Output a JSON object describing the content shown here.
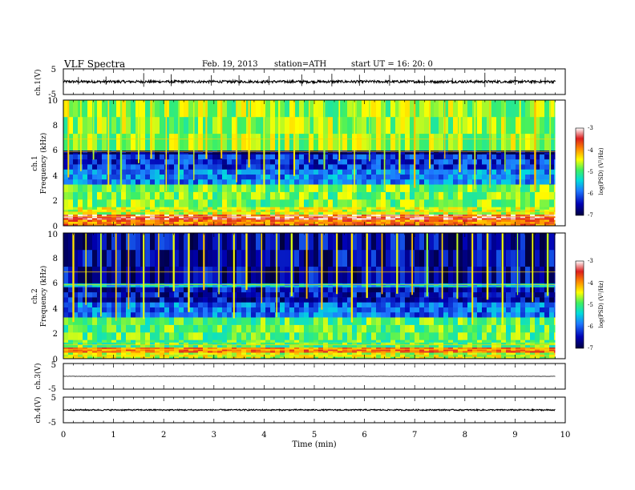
{
  "header": {
    "title": "VLF  Spectra",
    "date": "Feb. 19, 2013",
    "station": "station=ATH",
    "start": "start  UT  =   16: 20: 0"
  },
  "colors": {
    "colormap": [
      "#000040",
      "#0000b4",
      "#1e78ff",
      "#00dcdc",
      "#40f060",
      "#ffff00",
      "#ff8c00",
      "#dc1e1e",
      "#ffffff"
    ],
    "trace": "#000000"
  },
  "chart_data": [
    {
      "type": "line",
      "panel": "ch1-waveform",
      "ylabel": "ch.1(V)",
      "ylim": [
        -5,
        5
      ],
      "y_ticks": [
        "5",
        "-5"
      ],
      "xlim": [
        0,
        10
      ],
      "trace_level": 0,
      "noise_amplitude": 0.5,
      "spike_times_min": [
        0.3,
        0.85,
        1.6,
        2.15,
        2.95,
        3.5,
        4.1,
        4.75,
        5.35,
        5.9,
        6.5,
        7.2,
        7.75,
        8.4,
        9.0,
        9.6
      ]
    },
    {
      "type": "heatmap",
      "panel": "ch1-spectrogram",
      "ylabel": "ch.1\nFrequency  (kHz)",
      "y_ticks": [
        "0",
        "2",
        "4",
        "6",
        "8",
        "10"
      ],
      "ylim": [
        0,
        10
      ],
      "xlim": [
        0,
        9.8
      ],
      "colorbar": {
        "label": "log(PSD) (V²/Hz)",
        "ticks": [
          "-3",
          "-4",
          "-5",
          "-6",
          "-7"
        ],
        "range": [
          -7,
          -3
        ]
      },
      "bands_khz": [
        {
          "f0": 0.0,
          "f1": 0.5,
          "level": -3.9
        },
        {
          "f0": 0.5,
          "f1": 0.9,
          "level": -3.4
        },
        {
          "f0": 0.9,
          "f1": 1.5,
          "level": -4.6
        },
        {
          "f0": 1.5,
          "f1": 3.3,
          "level": -4.9
        },
        {
          "f0": 3.3,
          "f1": 4.5,
          "level": -5.9
        },
        {
          "f0": 4.5,
          "f1": 5.7,
          "level": -6.3
        },
        {
          "f0": 5.7,
          "f1": 6.0,
          "level": -6.8
        },
        {
          "f0": 6.0,
          "f1": 10.0,
          "level": -4.8
        }
      ],
      "sferic_times_min": [
        0.1,
        0.35,
        0.6,
        0.9,
        1.15,
        1.5,
        1.75,
        2.05,
        2.3,
        2.6,
        2.85,
        3.15,
        3.45,
        3.7,
        4.0,
        4.3,
        4.6,
        4.9,
        5.2,
        5.5,
        5.8,
        6.1,
        6.4,
        6.7,
        7.0,
        7.3,
        7.6,
        7.9,
        8.2,
        8.5,
        8.8,
        9.1,
        9.4,
        9.7
      ]
    },
    {
      "type": "heatmap",
      "panel": "ch2-spectrogram",
      "ylabel": "ch.2\nFrequency  (kHz)",
      "y_ticks": [
        "0",
        "2",
        "4",
        "6",
        "8",
        "10"
      ],
      "ylim": [
        0,
        10
      ],
      "xlim": [
        0,
        9.8
      ],
      "colorbar": {
        "label": "log(PSD) (V²/Hz)",
        "ticks": [
          "-3",
          "-4",
          "-5",
          "-6",
          "-7"
        ],
        "range": [
          -7,
          -3
        ]
      },
      "bands_khz": [
        {
          "f0": 0.0,
          "f1": 0.5,
          "level": -4.6
        },
        {
          "f0": 0.5,
          "f1": 0.9,
          "level": -3.9
        },
        {
          "f0": 0.9,
          "f1": 1.5,
          "level": -5.0
        },
        {
          "f0": 1.5,
          "f1": 3.3,
          "level": -5.0
        },
        {
          "f0": 3.3,
          "f1": 4.5,
          "level": -6.0
        },
        {
          "f0": 4.5,
          "f1": 5.7,
          "level": -6.5
        },
        {
          "f0": 5.7,
          "f1": 6.0,
          "level": -5.6
        },
        {
          "f0": 6.0,
          "f1": 10.0,
          "level": -6.6
        }
      ],
      "sferic_times_min": [
        0.2,
        0.45,
        0.75,
        1.05,
        1.3,
        1.6,
        1.9,
        2.2,
        2.5,
        2.8,
        3.1,
        3.4,
        3.65,
        3.95,
        4.25,
        4.55,
        4.85,
        5.15,
        5.45,
        5.75,
        6.05,
        6.35,
        6.65,
        6.95,
        7.25,
        7.55,
        7.85,
        8.15,
        8.45,
        8.75,
        9.05,
        9.35,
        9.65
      ]
    },
    {
      "type": "line",
      "panel": "ch3-waveform",
      "ylabel": "ch.3(V)",
      "ylim": [
        -5,
        5
      ],
      "y_ticks": [
        "5",
        "-5"
      ],
      "xlim": [
        0,
        10
      ],
      "trace_level": 0,
      "noise_amplitude": 0.05
    },
    {
      "type": "line",
      "panel": "ch4-waveform",
      "ylabel": "ch.4(V)",
      "ylim": [
        -5,
        5
      ],
      "y_ticks": [
        "5",
        "-5"
      ],
      "xlim": [
        0,
        10
      ],
      "trace_level": 0,
      "noise_amplitude": 0.25
    }
  ],
  "x_axis": {
    "label": "Time  (min)",
    "ticks": [
      "0",
      "1",
      "2",
      "3",
      "4",
      "5",
      "6",
      "7",
      "8",
      "9",
      "10"
    ],
    "range": [
      0,
      10
    ]
  }
}
